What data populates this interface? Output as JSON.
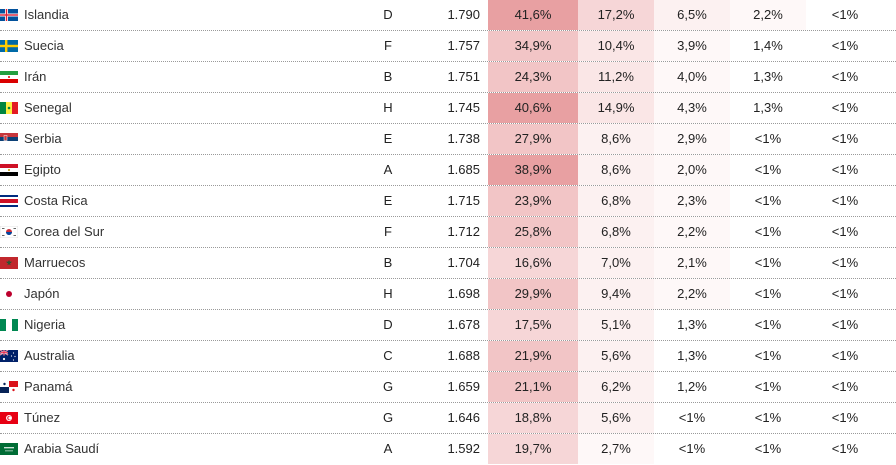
{
  "colors": {
    "heat_1": "#e8a0a2",
    "heat_2": "#f2c5c6",
    "heat_3": "#f6d6d7",
    "heat_4": "#fae6e6",
    "heat_5": "#fcf1f1",
    "heat_6": "#fef8f8"
  },
  "rows": [
    {
      "team": "Islandia",
      "flag": "iceland-flag-icon",
      "group": "D",
      "rating": "1.790",
      "p1": "41,6%",
      "p2": "17,2%",
      "p3": "6,5%",
      "p4": "2,2%",
      "p5": "<1%"
    },
    {
      "team": "Suecia",
      "flag": "sweden-flag-icon",
      "group": "F",
      "rating": "1.757",
      "p1": "34,9%",
      "p2": "10,4%",
      "p3": "3,9%",
      "p4": "1,4%",
      "p5": "<1%"
    },
    {
      "team": "Irán",
      "flag": "iran-flag-icon",
      "group": "B",
      "rating": "1.751",
      "p1": "24,3%",
      "p2": "11,2%",
      "p3": "4,0%",
      "p4": "1,3%",
      "p5": "<1%"
    },
    {
      "team": "Senegal",
      "flag": "senegal-flag-icon",
      "group": "H",
      "rating": "1.745",
      "p1": "40,6%",
      "p2": "14,9%",
      "p3": "4,3%",
      "p4": "1,3%",
      "p5": "<1%"
    },
    {
      "team": "Serbia",
      "flag": "serbia-flag-icon",
      "group": "E",
      "rating": "1.738",
      "p1": "27,9%",
      "p2": "8,6%",
      "p3": "2,9%",
      "p4": "<1%",
      "p5": "<1%"
    },
    {
      "team": "Egipto",
      "flag": "egypt-flag-icon",
      "group": "A",
      "rating": "1.685",
      "p1": "38,9%",
      "p2": "8,6%",
      "p3": "2,0%",
      "p4": "<1%",
      "p5": "<1%"
    },
    {
      "team": "Costa Rica",
      "flag": "costa-rica-flag-icon",
      "group": "E",
      "rating": "1.715",
      "p1": "23,9%",
      "p2": "6,8%",
      "p3": "2,3%",
      "p4": "<1%",
      "p5": "<1%"
    },
    {
      "team": "Corea del Sur",
      "flag": "south-korea-flag-icon",
      "group": "F",
      "rating": "1.712",
      "p1": "25,8%",
      "p2": "6,8%",
      "p3": "2,2%",
      "p4": "<1%",
      "p5": "<1%"
    },
    {
      "team": "Marruecos",
      "flag": "morocco-flag-icon",
      "group": "B",
      "rating": "1.704",
      "p1": "16,6%",
      "p2": "7,0%",
      "p3": "2,1%",
      "p4": "<1%",
      "p5": "<1%"
    },
    {
      "team": "Japón",
      "flag": "japan-flag-icon",
      "group": "H",
      "rating": "1.698",
      "p1": "29,9%",
      "p2": "9,4%",
      "p3": "2,2%",
      "p4": "<1%",
      "p5": "<1%"
    },
    {
      "team": "Nigeria",
      "flag": "nigeria-flag-icon",
      "group": "D",
      "rating": "1.678",
      "p1": "17,5%",
      "p2": "5,1%",
      "p3": "1,3%",
      "p4": "<1%",
      "p5": "<1%"
    },
    {
      "team": "Australia",
      "flag": "australia-flag-icon",
      "group": "C",
      "rating": "1.688",
      "p1": "21,9%",
      "p2": "5,6%",
      "p3": "1,3%",
      "p4": "<1%",
      "p5": "<1%"
    },
    {
      "team": "Panamá",
      "flag": "panama-flag-icon",
      "group": "G",
      "rating": "1.659",
      "p1": "21,1%",
      "p2": "6,2%",
      "p3": "1,2%",
      "p4": "<1%",
      "p5": "<1%"
    },
    {
      "team": "Túnez",
      "flag": "tunisia-flag-icon",
      "group": "G",
      "rating": "1.646",
      "p1": "18,8%",
      "p2": "5,6%",
      "p3": "<1%",
      "p4": "<1%",
      "p5": "<1%"
    },
    {
      "team": "Arabia Saudí",
      "flag": "saudi-arabia-flag-icon",
      "group": "A",
      "rating": "1.592",
      "p1": "19,7%",
      "p2": "2,7%",
      "p3": "<1%",
      "p4": "<1%",
      "p5": "<1%"
    }
  ]
}
